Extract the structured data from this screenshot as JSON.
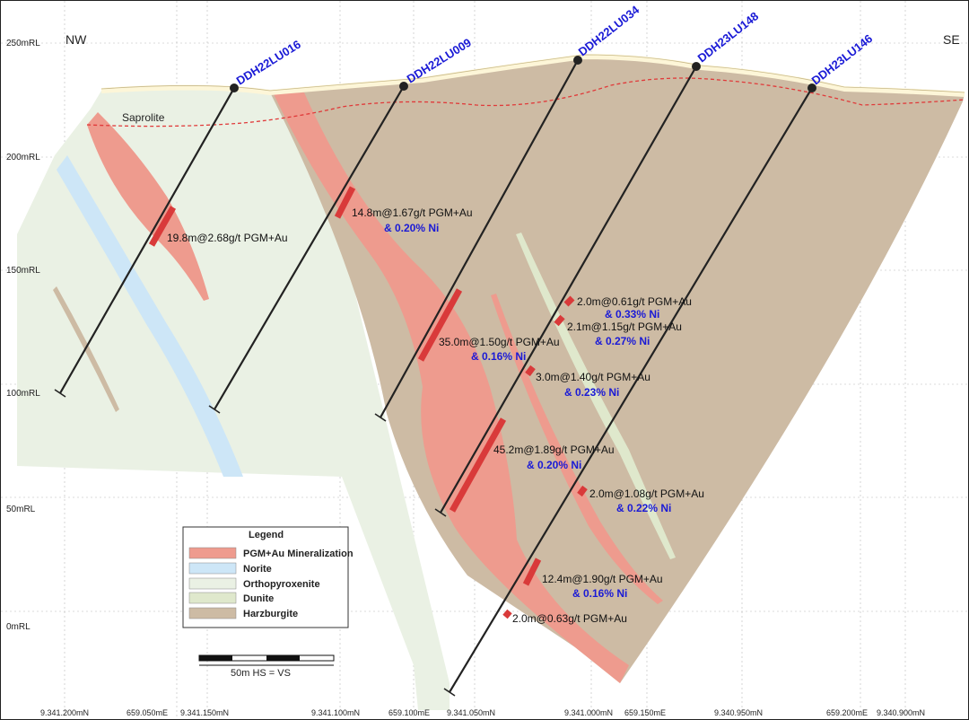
{
  "elevation_labels": [
    "250mRL",
    "200mRL",
    "150mRL",
    "100mRL",
    "50mRL",
    "0mRL"
  ],
  "easting_labels": [
    "9.341.200mN",
    "659.050mE",
    "9.341.150mN",
    "9.341.100mN",
    "659.100mE",
    "9.341.050mN",
    "9.341.000mN",
    "659.150mE",
    "9.340.950mN",
    "659.200mE",
    "9.340.900mN"
  ],
  "direction": {
    "left": "NW",
    "right": "SE"
  },
  "saprolite_label": "Saprolite",
  "holes": [
    {
      "name": "DDH22LU016"
    },
    {
      "name": "DDH22LU009"
    },
    {
      "name": "DDH22LU034"
    },
    {
      "name": "DDH23LU148"
    },
    {
      "name": "DDH23LU146"
    }
  ],
  "intercepts": [
    {
      "main": "19.8m@2.68g/t PGM+Au",
      "ni": ""
    },
    {
      "main": "14.8m@1.67g/t PGM+Au",
      "ni": "& 0.20% Ni"
    },
    {
      "main": "35.0m@1.50g/t PGM+Au",
      "ni": "& 0.16% Ni"
    },
    {
      "main": "45.2m@1.89g/t PGM+Au",
      "ni": "& 0.20% Ni"
    },
    {
      "main": "2.0m@0.61g/t PGM+Au",
      "ni": "& 0.33% Ni"
    },
    {
      "main": "2.1m@1.15g/t PGM+Au",
      "ni": "& 0.27% Ni"
    },
    {
      "main": "3.0m@1.40g/t PGM+Au",
      "ni": "& 0.23% Ni"
    },
    {
      "main": "2.0m@1.08g/t PGM+Au",
      "ni": "& 0.22% Ni"
    },
    {
      "main": "12.4m@1.90g/t PGM+Au",
      "ni": "& 0.16% Ni"
    },
    {
      "main": "2.0m@0.63g/t PGM+Au",
      "ni": ""
    }
  ],
  "legend": {
    "title": "Legend",
    "items": [
      {
        "label": "PGM+Au Mineralization",
        "color": "#ee9b8e"
      },
      {
        "label": "Norite",
        "color": "#cde6f7"
      },
      {
        "label": "Orthopyroxenite",
        "color": "#eaf1e4"
      },
      {
        "label": "Dunite",
        "color": "#dfe8cc"
      },
      {
        "label": "Harzburgite",
        "color": "#cdbba4"
      }
    ]
  },
  "scale_bar": {
    "label": "50m  HS = VS"
  },
  "colors": {
    "mineralization": "#ee9b8e",
    "intercept": "#d93a3a",
    "norite": "#cde6f7",
    "orthopyroxenite": "#eaf1e4",
    "dunite": "#dfe8cc",
    "harzburgite": "#cdbba4",
    "surface": "#fdf6d8",
    "saprolite_line": "#e03a3a",
    "hole": "#222222",
    "hole_label": "#1a1ad6"
  }
}
